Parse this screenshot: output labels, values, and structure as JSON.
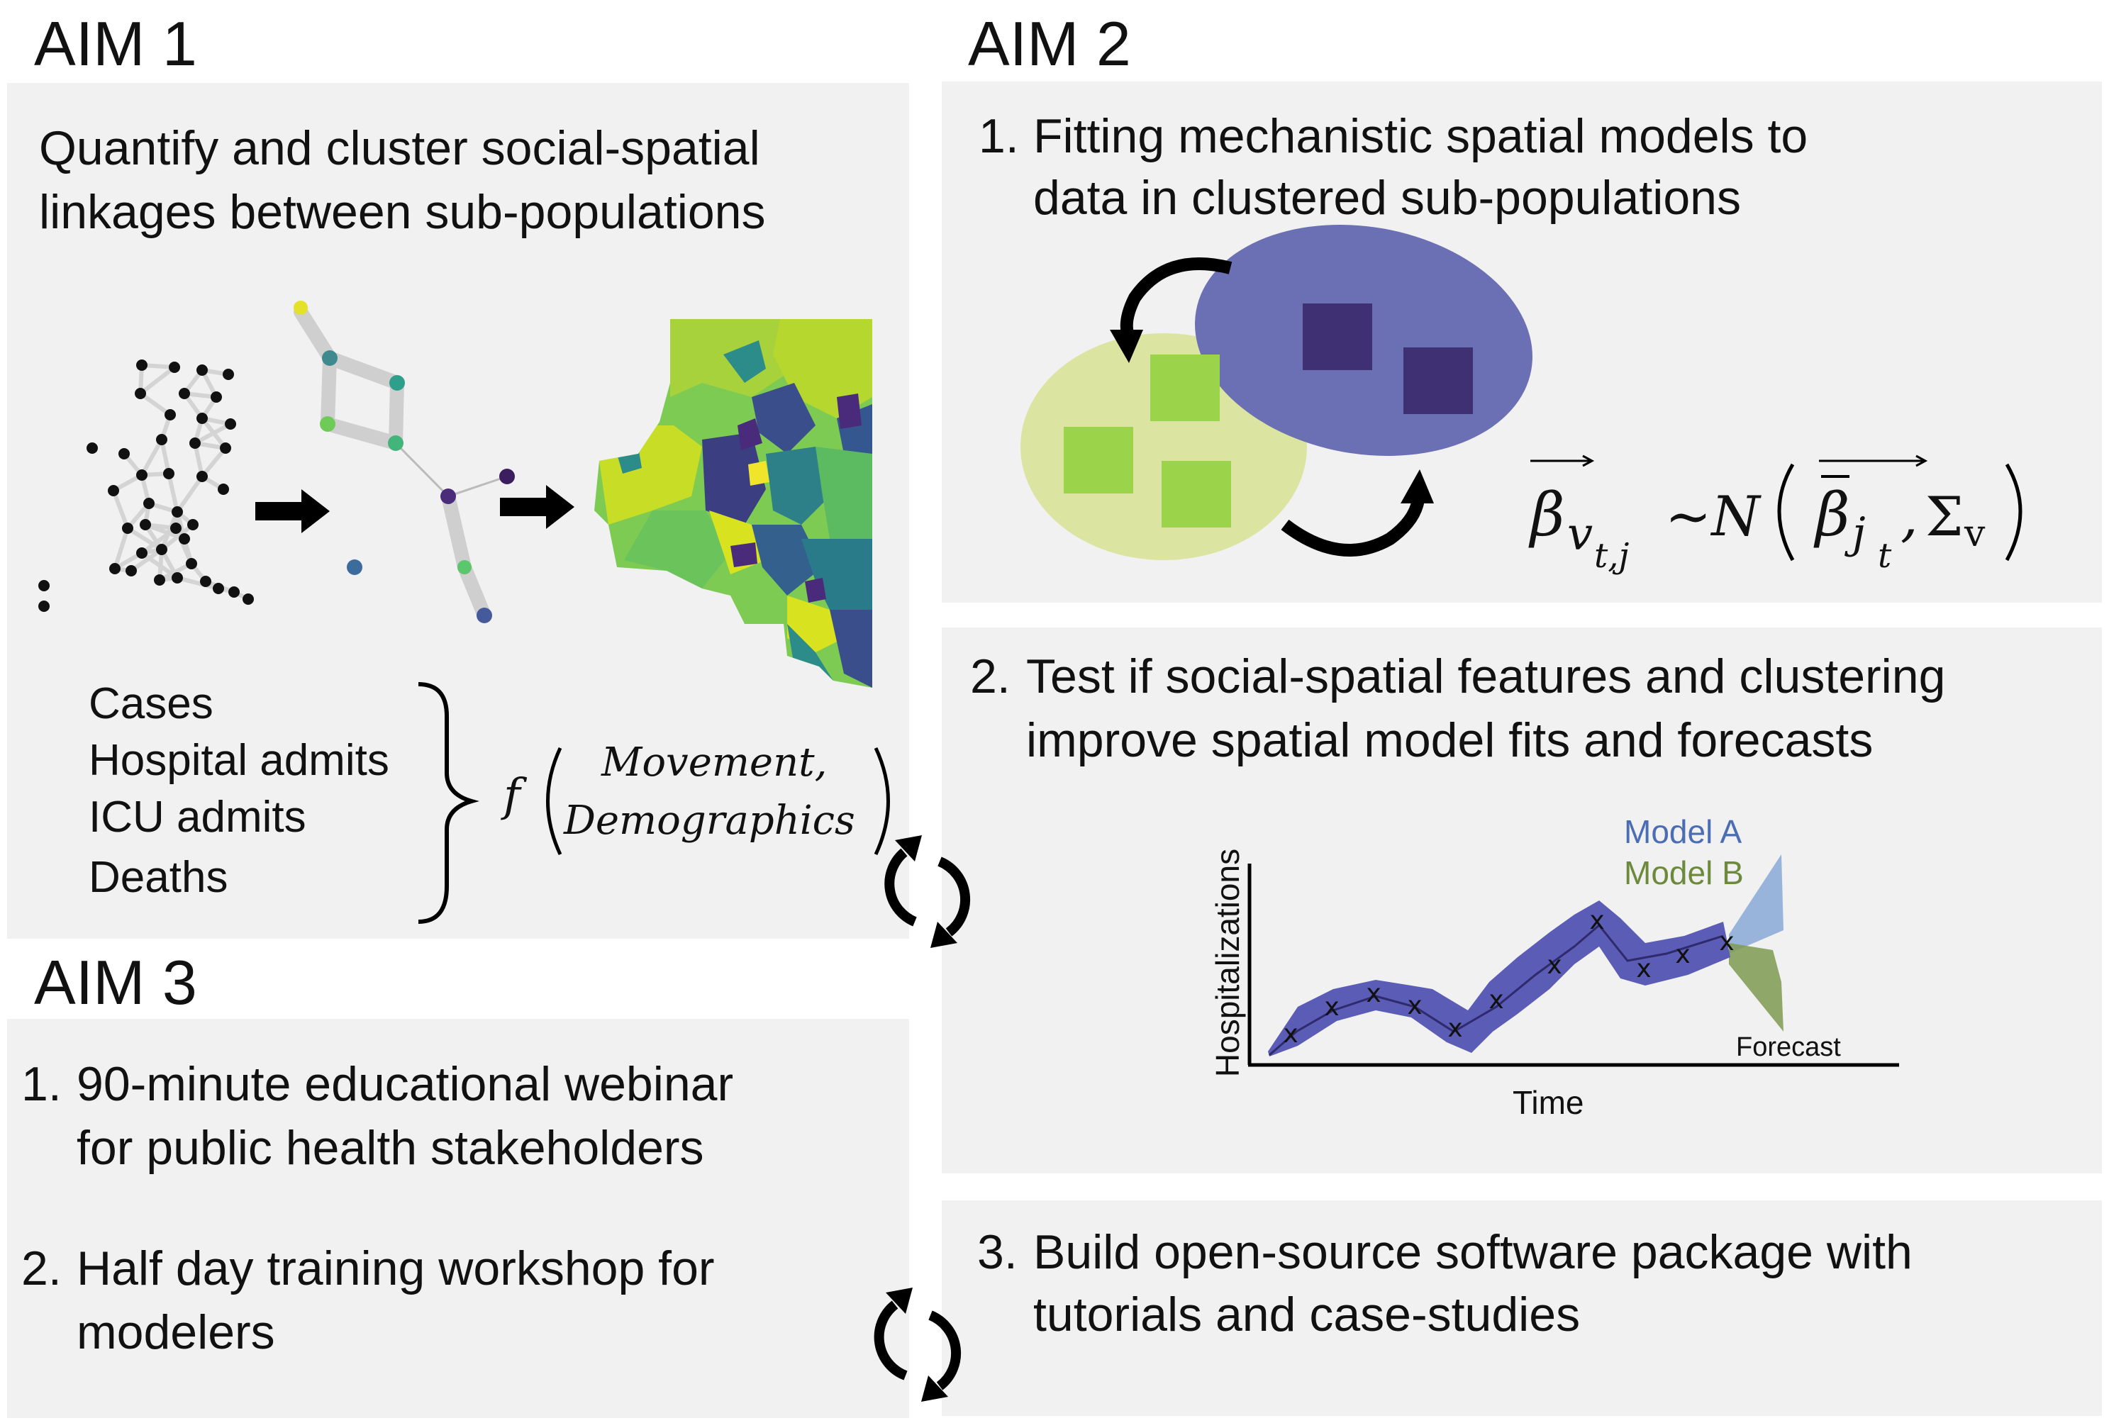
{
  "aim1": {
    "title": "AIM 1",
    "heading_line1": "Quantify and cluster social-spatial",
    "heading_line2": "linkages between sub-populations",
    "outcomes": [
      "Cases",
      "Hospital admits",
      "ICU admits",
      "Deaths"
    ],
    "function_f": "f",
    "function_arg1": "Movement,",
    "function_arg2": "Demographics"
  },
  "aim2": {
    "title": "AIM 2",
    "item1_num": "1.",
    "item1_line1": "Fitting mechanistic spatial models to",
    "item1_line2": "data in clustered sub-populations",
    "formula": {
      "beta": "β",
      "sub": "v",
      "subsub": "t,j",
      "tilde_n": "~N",
      "beta_bar": "β",
      "bar_sub": "j",
      "bar_subsub": "t",
      "sigma": "Σ",
      "sigma_sub": "v"
    },
    "item2_num": "2.",
    "item2_line1": "Test if social-spatial features and clustering",
    "item2_line2": "improve spatial model fits and forecasts",
    "chart": {
      "ylabel": "Hospitalizations",
      "xlabel": "Time",
      "legend_a": "Model A",
      "legend_b": "Model B",
      "forecast_label": "Forecast"
    },
    "item3_num": "3.",
    "item3_line1": "Build open-source software package with",
    "item3_line2": "tutorials and case-studies"
  },
  "aim3": {
    "title": "AIM 3",
    "item1_num": "1.",
    "item1_line1": "90-minute educational webinar",
    "item1_line2": "for public health stakeholders",
    "item2_num": "2.",
    "item2_line1": "Half day training workshop for",
    "item2_line2": "modelers"
  },
  "colors": {
    "panel": "#f1f1f1",
    "cluster_blue": "#6b6fb4",
    "cluster_blue_square": "#3f3074",
    "cluster_green": "#dbe5a1",
    "cluster_green_square": "#9bd34a",
    "model_a": "#4b6db3",
    "model_b": "#6d8a3c"
  },
  "chart_data": {
    "type": "line",
    "title": "",
    "xlabel": "Time",
    "ylabel": "Hospitalizations",
    "series": [
      {
        "name": "Model A",
        "values": []
      },
      {
        "name": "Model B",
        "values": []
      }
    ],
    "annotations": [
      "Forecast"
    ]
  }
}
